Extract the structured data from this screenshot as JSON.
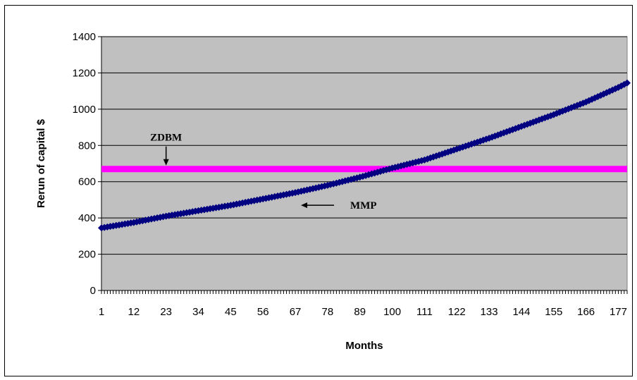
{
  "chart_data": {
    "type": "line",
    "title": "",
    "xlabel": "Months",
    "ylabel": "Rerun of capital $",
    "x_range": [
      1,
      180
    ],
    "x_tick_labels": [
      "1",
      "12",
      "23",
      "34",
      "45",
      "56",
      "67",
      "78",
      "89",
      "100",
      "111",
      "122",
      "133",
      "144",
      "155",
      "166",
      "177"
    ],
    "ylim": [
      0,
      1400
    ],
    "y_ticks": [
      0,
      200,
      400,
      600,
      800,
      1000,
      1200,
      1400
    ],
    "grid": true,
    "legend": "none",
    "plot_background": "#c0c0c0",
    "series": [
      {
        "name": "MMP",
        "color": "#000080",
        "x": [
          1,
          12,
          23,
          34,
          45,
          56,
          67,
          78,
          89,
          100,
          111,
          122,
          133,
          144,
          155,
          166,
          177,
          180
        ],
        "y": [
          345,
          375,
          410,
          440,
          470,
          505,
          540,
          580,
          625,
          675,
          720,
          780,
          840,
          905,
          970,
          1040,
          1120,
          1145
        ]
      },
      {
        "name": "ZDBM",
        "color": "#ff00ff",
        "x": [
          1,
          180
        ],
        "y": [
          670,
          670
        ]
      }
    ],
    "annotations": [
      {
        "text": "ZDBM",
        "arrow": "down",
        "x": 23,
        "y": 670
      },
      {
        "text": "MMP",
        "arrow": "left",
        "x": 67,
        "y": 470
      }
    ]
  }
}
